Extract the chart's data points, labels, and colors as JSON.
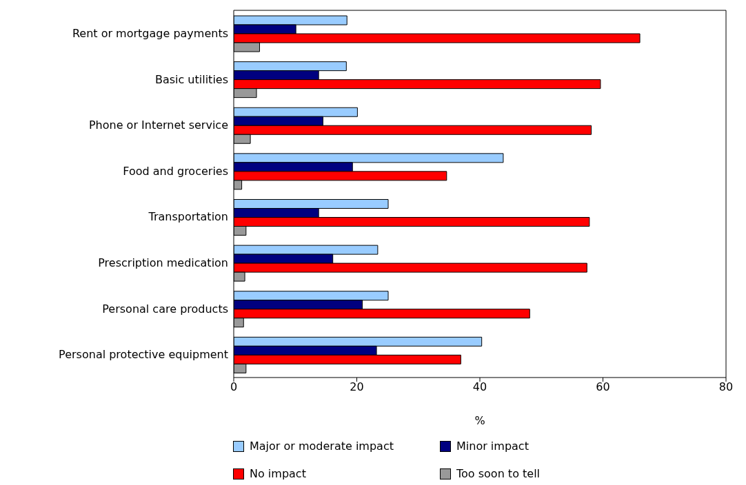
{
  "chart_data": {
    "type": "bar",
    "orientation": "horizontal",
    "xlabel": "%",
    "categories": [
      "Rent or mortgage payments",
      "Basic utilities",
      "Phone or Internet service",
      "Food and groceries",
      "Transportation",
      "Prescription medication",
      "Personal care products",
      "Personal protective equipment"
    ],
    "series": [
      {
        "name": "Major or moderate impact",
        "color": "#99ccff",
        "values": [
          18.4,
          18.3,
          20.1,
          43.8,
          25.1,
          23.4,
          25.1,
          40.3
        ]
      },
      {
        "name": "Minor impact",
        "color": "#000080",
        "values": [
          10.1,
          13.8,
          14.5,
          19.3,
          13.8,
          16.1,
          20.9,
          23.2
        ]
      },
      {
        "name": "No impact",
        "color": "#ff0000",
        "values": [
          66.0,
          59.6,
          58.1,
          34.6,
          57.8,
          57.4,
          48.1,
          36.9
        ]
      },
      {
        "name": "Too soon to tell",
        "color": "#999999",
        "values": [
          4.2,
          3.7,
          2.7,
          1.3,
          2.0,
          1.8,
          1.6,
          2.0
        ]
      }
    ],
    "xlim": [
      0,
      80
    ],
    "xticks": [
      0,
      20,
      40,
      60,
      80
    ],
    "legend": "bottom"
  }
}
